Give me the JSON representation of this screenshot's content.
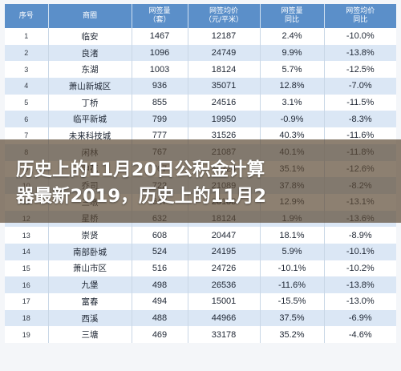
{
  "table": {
    "headers": [
      {
        "line1": "序号",
        "line2": ""
      },
      {
        "line1": "商圈",
        "line2": ""
      },
      {
        "line1": "网签量",
        "line2": "（套）"
      },
      {
        "line1": "网签均价",
        "line2": "（元/平米）"
      },
      {
        "line1": "网签量",
        "line2": "同比"
      },
      {
        "line1": "网签均价",
        "line2": "同比"
      }
    ],
    "rows": [
      [
        "1",
        "临安",
        "1467",
        "12187",
        "2.4%",
        "-10.0%"
      ],
      [
        "2",
        "良渚",
        "1096",
        "24749",
        "9.9%",
        "-13.8%"
      ],
      [
        "3",
        "东湖",
        "1003",
        "18124",
        "5.7%",
        "-12.5%"
      ],
      [
        "4",
        "萧山新城区",
        "936",
        "35071",
        "12.8%",
        "-7.0%"
      ],
      [
        "5",
        "丁桥",
        "855",
        "24516",
        "3.1%",
        "-11.5%"
      ],
      [
        "6",
        "临平新城",
        "799",
        "19950",
        "-0.9%",
        "-8.3%"
      ],
      [
        "7",
        "未来科技城",
        "777",
        "31526",
        "40.3%",
        "-11.6%"
      ],
      [
        "8",
        "闲林",
        "767",
        "21087",
        "40.1%",
        "-11.8%"
      ],
      [
        "9",
        "申花",
        "767",
        "40124",
        "35.1%",
        "-12.6%"
      ],
      [
        "10",
        "乔司",
        "722",
        "21089",
        "37.8%",
        "-8.2%"
      ],
      [
        "11",
        "三墩",
        "647",
        "28183",
        "12.9%",
        "-13.1%"
      ],
      [
        "12",
        "星桥",
        "632",
        "18124",
        "1.9%",
        "-13.6%"
      ],
      [
        "13",
        "崇贤",
        "608",
        "20447",
        "18.1%",
        "-8.9%"
      ],
      [
        "14",
        "南部卧城",
        "524",
        "24195",
        "5.9%",
        "-10.1%"
      ],
      [
        "15",
        "萧山市区",
        "516",
        "24726",
        "-10.1%",
        "-10.2%"
      ],
      [
        "16",
        "九堡",
        "498",
        "26536",
        "-11.6%",
        "-13.8%"
      ],
      [
        "17",
        "富春",
        "494",
        "15001",
        "-15.5%",
        "-13.0%"
      ],
      [
        "18",
        "西溪",
        "488",
        "44966",
        "37.5%",
        "-6.9%"
      ],
      [
        "19",
        "三塘",
        "469",
        "33178",
        "35.2%",
        "-4.6%"
      ]
    ]
  },
  "headline": {
    "line1": "历史上的11月20日公积金计算",
    "line2": "器最新2019，历史上的11月2"
  }
}
